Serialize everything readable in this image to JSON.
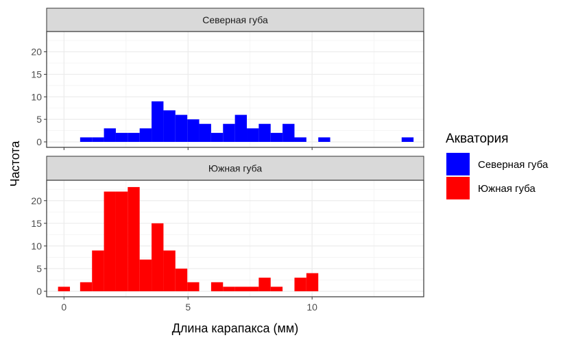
{
  "chart_data": {
    "type": "bar",
    "subtype": "faceted-histogram",
    "xlabel": "Длина карапакса (мм)",
    "ylabel": "Частота",
    "xlim": [
      -0.7,
      14.5
    ],
    "ylim": [
      0,
      24.5
    ],
    "x_ticks": [
      0,
      5,
      10
    ],
    "y_ticks": [
      0,
      5,
      10,
      15,
      20
    ],
    "bin_width": 0.48,
    "legend": {
      "title": "Акватория",
      "position": "right",
      "entries": [
        {
          "label": "Северная губа",
          "color": "#0000FF"
        },
        {
          "label": "Южная губа",
          "color": "#FF0000"
        }
      ]
    },
    "facets": [
      {
        "label": "Северная губа",
        "color": "#0000FF",
        "bins": [
          {
            "x": 0.89,
            "count": 1
          },
          {
            "x": 1.37,
            "count": 1
          },
          {
            "x": 1.85,
            "count": 3
          },
          {
            "x": 2.33,
            "count": 2
          },
          {
            "x": 2.81,
            "count": 2
          },
          {
            "x": 3.29,
            "count": 3
          },
          {
            "x": 3.77,
            "count": 9
          },
          {
            "x": 4.25,
            "count": 7
          },
          {
            "x": 4.73,
            "count": 6
          },
          {
            "x": 5.21,
            "count": 5
          },
          {
            "x": 5.69,
            "count": 4
          },
          {
            "x": 6.17,
            "count": 2
          },
          {
            "x": 6.65,
            "count": 4
          },
          {
            "x": 7.13,
            "count": 6
          },
          {
            "x": 7.61,
            "count": 3
          },
          {
            "x": 8.09,
            "count": 4
          },
          {
            "x": 8.57,
            "count": 2
          },
          {
            "x": 9.05,
            "count": 4
          },
          {
            "x": 9.53,
            "count": 1
          },
          {
            "x": 10.49,
            "count": 1
          },
          {
            "x": 13.85,
            "count": 1
          }
        ]
      },
      {
        "label": "Южная губа",
        "color": "#FF0000",
        "bins": [
          {
            "x": 0.0,
            "count": 1
          },
          {
            "x": 0.89,
            "count": 2
          },
          {
            "x": 1.37,
            "count": 9
          },
          {
            "x": 1.85,
            "count": 22
          },
          {
            "x": 2.33,
            "count": 22
          },
          {
            "x": 2.81,
            "count": 23
          },
          {
            "x": 3.29,
            "count": 7
          },
          {
            "x": 3.77,
            "count": 15
          },
          {
            "x": 4.25,
            "count": 9
          },
          {
            "x": 4.73,
            "count": 5
          },
          {
            "x": 5.21,
            "count": 2
          },
          {
            "x": 6.17,
            "count": 2
          },
          {
            "x": 6.65,
            "count": 1
          },
          {
            "x": 7.13,
            "count": 1
          },
          {
            "x": 7.61,
            "count": 1
          },
          {
            "x": 8.09,
            "count": 3
          },
          {
            "x": 8.57,
            "count": 1
          },
          {
            "x": 9.53,
            "count": 3
          },
          {
            "x": 10.01,
            "count": 4
          }
        ]
      }
    ]
  }
}
